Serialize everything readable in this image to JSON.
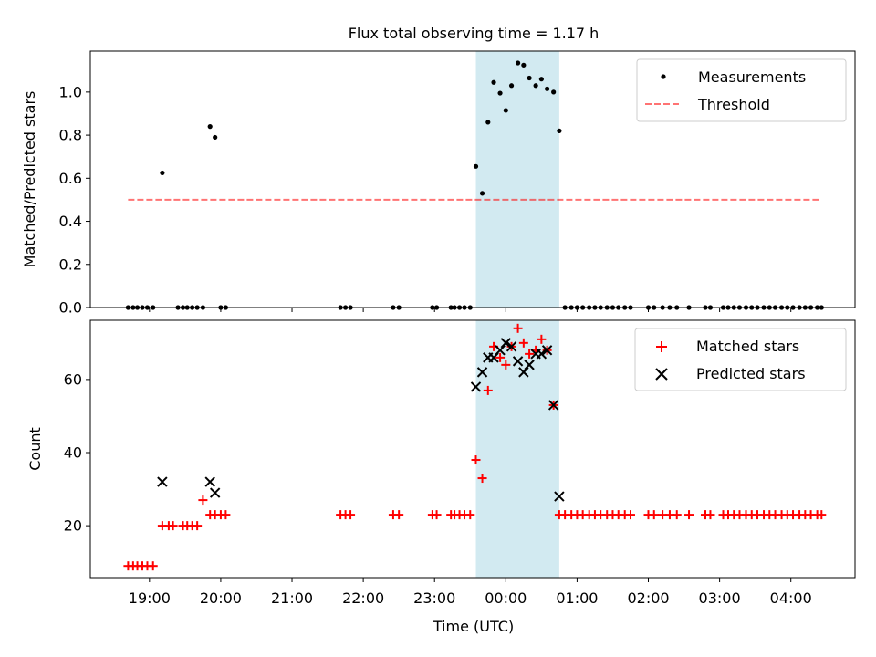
{
  "title": "Flux total observing time = 1.17 h",
  "colors": {
    "measurement": "#000000",
    "threshold": "#ff0000",
    "matched": "#ff0000",
    "predicted": "#000000",
    "window": "#add8e6"
  },
  "chart_data": [
    {
      "type": "scatter",
      "ylabel": "Matched/Predicted stars",
      "xlim": [
        18.17,
        28.9
      ],
      "ylim": [
        0,
        1.19
      ],
      "yticks": [
        0.0,
        0.2,
        0.4,
        0.6,
        0.8,
        1.0
      ],
      "grid": false,
      "legend": "top-right",
      "highlight_window": [
        23.58,
        24.75
      ],
      "series": [
        {
          "name": "Measurements",
          "style": "dot",
          "x": [
            18.7,
            18.77,
            18.83,
            18.9,
            18.97,
            19.05,
            19.18,
            19.4,
            19.47,
            19.53,
            19.6,
            19.67,
            19.75,
            19.85,
            19.92,
            20.0,
            20.07,
            21.68,
            21.75,
            21.82,
            22.42,
            22.5,
            22.97,
            23.03,
            23.23,
            23.28,
            23.35,
            23.42,
            23.5,
            23.58,
            23.67,
            23.75,
            23.83,
            23.92,
            24.0,
            24.08,
            24.17,
            24.25,
            24.33,
            24.42,
            24.5,
            24.58,
            24.67,
            24.75,
            24.83,
            24.92,
            25.0,
            25.08,
            25.17,
            25.25,
            25.33,
            25.42,
            25.5,
            25.58,
            25.67,
            25.75,
            26.0,
            26.08,
            26.2,
            26.3,
            26.4,
            26.57,
            26.8,
            26.87,
            27.05,
            27.12,
            27.2,
            27.28,
            27.37,
            27.45,
            27.53,
            27.62,
            27.7,
            27.78,
            27.87,
            27.95,
            28.03,
            28.12,
            28.2,
            28.28,
            28.37,
            28.43
          ],
          "y": [
            0,
            0,
            0,
            0,
            0,
            0,
            0.625,
            0,
            0,
            0,
            0,
            0,
            0,
            0.84,
            0.79,
            0,
            0,
            0,
            0,
            0,
            0,
            0,
            0,
            0,
            0,
            0,
            0,
            0,
            0,
            0.655,
            0.53,
            0.86,
            1.045,
            0.995,
            0.915,
            1.03,
            1.135,
            1.125,
            1.065,
            1.03,
            1.06,
            1.015,
            1.0,
            0.82,
            0,
            0,
            0,
            0,
            0,
            0,
            0,
            0,
            0,
            0,
            0,
            0,
            0,
            0,
            0,
            0,
            0,
            0,
            0,
            0,
            0,
            0,
            0,
            0,
            0,
            0,
            0,
            0,
            0,
            0,
            0,
            0,
            0,
            0,
            0,
            0,
            0,
            0
          ]
        },
        {
          "name": "Threshold",
          "style": "dashed-line",
          "x": [
            18.7,
            28.4
          ],
          "y": [
            0.5,
            0.5
          ]
        }
      ]
    },
    {
      "type": "scatter",
      "xlabel": "Time (UTC)",
      "ylabel": "Count",
      "xlim": [
        18.17,
        28.9
      ],
      "ylim": [
        5.8,
        76.2
      ],
      "yticks": [
        20,
        40,
        60
      ],
      "xticks": [
        19,
        20,
        21,
        22,
        23,
        24,
        25,
        26,
        27,
        28
      ],
      "xtick_labels": [
        "19:00",
        "20:00",
        "21:00",
        "22:00",
        "23:00",
        "00:00",
        "01:00",
        "02:00",
        "03:00",
        "04:00"
      ],
      "grid": false,
      "legend": "top-right",
      "highlight_window": [
        23.58,
        24.75
      ],
      "series": [
        {
          "name": "Matched stars",
          "style": "plus",
          "x": [
            18.7,
            18.77,
            18.83,
            18.9,
            18.97,
            19.05,
            19.18,
            19.27,
            19.33,
            19.47,
            19.53,
            19.6,
            19.67,
            19.75,
            19.85,
            19.92,
            20.0,
            20.07,
            21.68,
            21.75,
            21.82,
            22.42,
            22.5,
            22.97,
            23.03,
            23.23,
            23.28,
            23.35,
            23.42,
            23.5,
            23.58,
            23.67,
            23.75,
            23.83,
            23.92,
            24.0,
            24.08,
            24.17,
            24.25,
            24.33,
            24.42,
            24.5,
            24.58,
            24.67,
            24.75,
            24.83,
            24.92,
            25.0,
            25.08,
            25.17,
            25.25,
            25.33,
            25.42,
            25.5,
            25.58,
            25.67,
            25.75,
            26.0,
            26.08,
            26.2,
            26.3,
            26.4,
            26.57,
            26.8,
            26.87,
            27.05,
            27.12,
            27.2,
            27.28,
            27.37,
            27.45,
            27.53,
            27.62,
            27.7,
            27.78,
            27.87,
            27.95,
            28.03,
            28.12,
            28.2,
            28.28,
            28.37,
            28.43
          ],
          "y": [
            9,
            9,
            9,
            9,
            9,
            9,
            20,
            20,
            20,
            20,
            20,
            20,
            20,
            27,
            23,
            23,
            23,
            23,
            23,
            23,
            23,
            23,
            23,
            23,
            23,
            23,
            23,
            23,
            23,
            23,
            38,
            33,
            57,
            69,
            66,
            64,
            69,
            74,
            70,
            67,
            68,
            71,
            68,
            53,
            23,
            23,
            23,
            23,
            23,
            23,
            23,
            23,
            23,
            23,
            23,
            23,
            23,
            23,
            23,
            23,
            23,
            23,
            23,
            23,
            23,
            23,
            23,
            23,
            23,
            23,
            23,
            23,
            23,
            23,
            23,
            23,
            23,
            23,
            23,
            23,
            23,
            23,
            23
          ]
        },
        {
          "name": "Predicted stars",
          "style": "x",
          "x": [
            19.18,
            19.85,
            19.92,
            23.58,
            23.67,
            23.75,
            23.83,
            23.92,
            24.0,
            24.08,
            24.17,
            24.25,
            24.33,
            24.42,
            24.5,
            24.58,
            24.67,
            24.75
          ],
          "y": [
            32,
            32,
            29,
            58,
            62,
            66,
            66,
            68,
            70,
            69,
            65,
            62,
            64,
            67,
            67,
            68,
            53,
            28
          ]
        }
      ]
    }
  ]
}
